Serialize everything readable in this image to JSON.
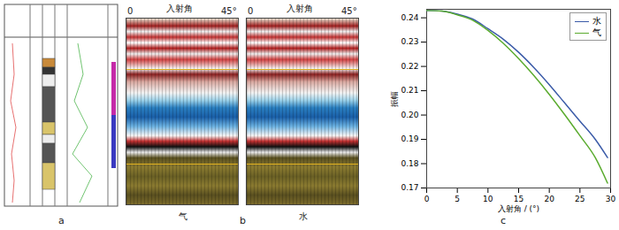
{
  "chart_data": {
    "type": "line",
    "x_label": "入射角 / (°)",
    "y_label": "振幅",
    "x": [
      0,
      2.5,
      5,
      7.5,
      10,
      12.5,
      15,
      17.5,
      20,
      22.5,
      25,
      27.5,
      29.5
    ],
    "series": [
      {
        "name": "水",
        "color": "#3b5ba8",
        "values": [
          0.243,
          0.2428,
          0.2415,
          0.2395,
          0.2355,
          0.2312,
          0.2258,
          0.2195,
          0.2125,
          0.205,
          0.1975,
          0.19,
          0.1825
        ]
      },
      {
        "name": "气",
        "color": "#5aab2e",
        "values": [
          0.243,
          0.2428,
          0.2412,
          0.239,
          0.2348,
          0.2295,
          0.2232,
          0.2162,
          0.2085,
          0.2002,
          0.1915,
          0.1825,
          0.172
        ]
      }
    ],
    "xlim": [
      0,
      30
    ],
    "xticks": [
      0,
      5,
      10,
      15,
      20,
      25,
      30
    ],
    "ylim": [
      0.17,
      0.2435
    ],
    "yticks": [
      {
        "value": 0.17,
        "label": "0.17"
      },
      {
        "value": 0.18,
        "label": "0.18"
      },
      {
        "value": 0.19,
        "label": "0.19"
      },
      {
        "value": 0.2,
        "label": "0.20"
      },
      {
        "value": 0.21,
        "label": "0.21"
      },
      {
        "value": 0.22,
        "label": "0.22"
      },
      {
        "value": 0.23,
        "label": "0.23"
      },
      {
        "value": 0.24,
        "label": "0.24"
      }
    ],
    "legend": "top-right",
    "grid": false
  },
  "gathers": {
    "axis_title": "入射角",
    "start": "0",
    "end": "45°",
    "labels": [
      "气",
      "水"
    ]
  },
  "panel_labels": [
    "a",
    "b",
    "c"
  ]
}
